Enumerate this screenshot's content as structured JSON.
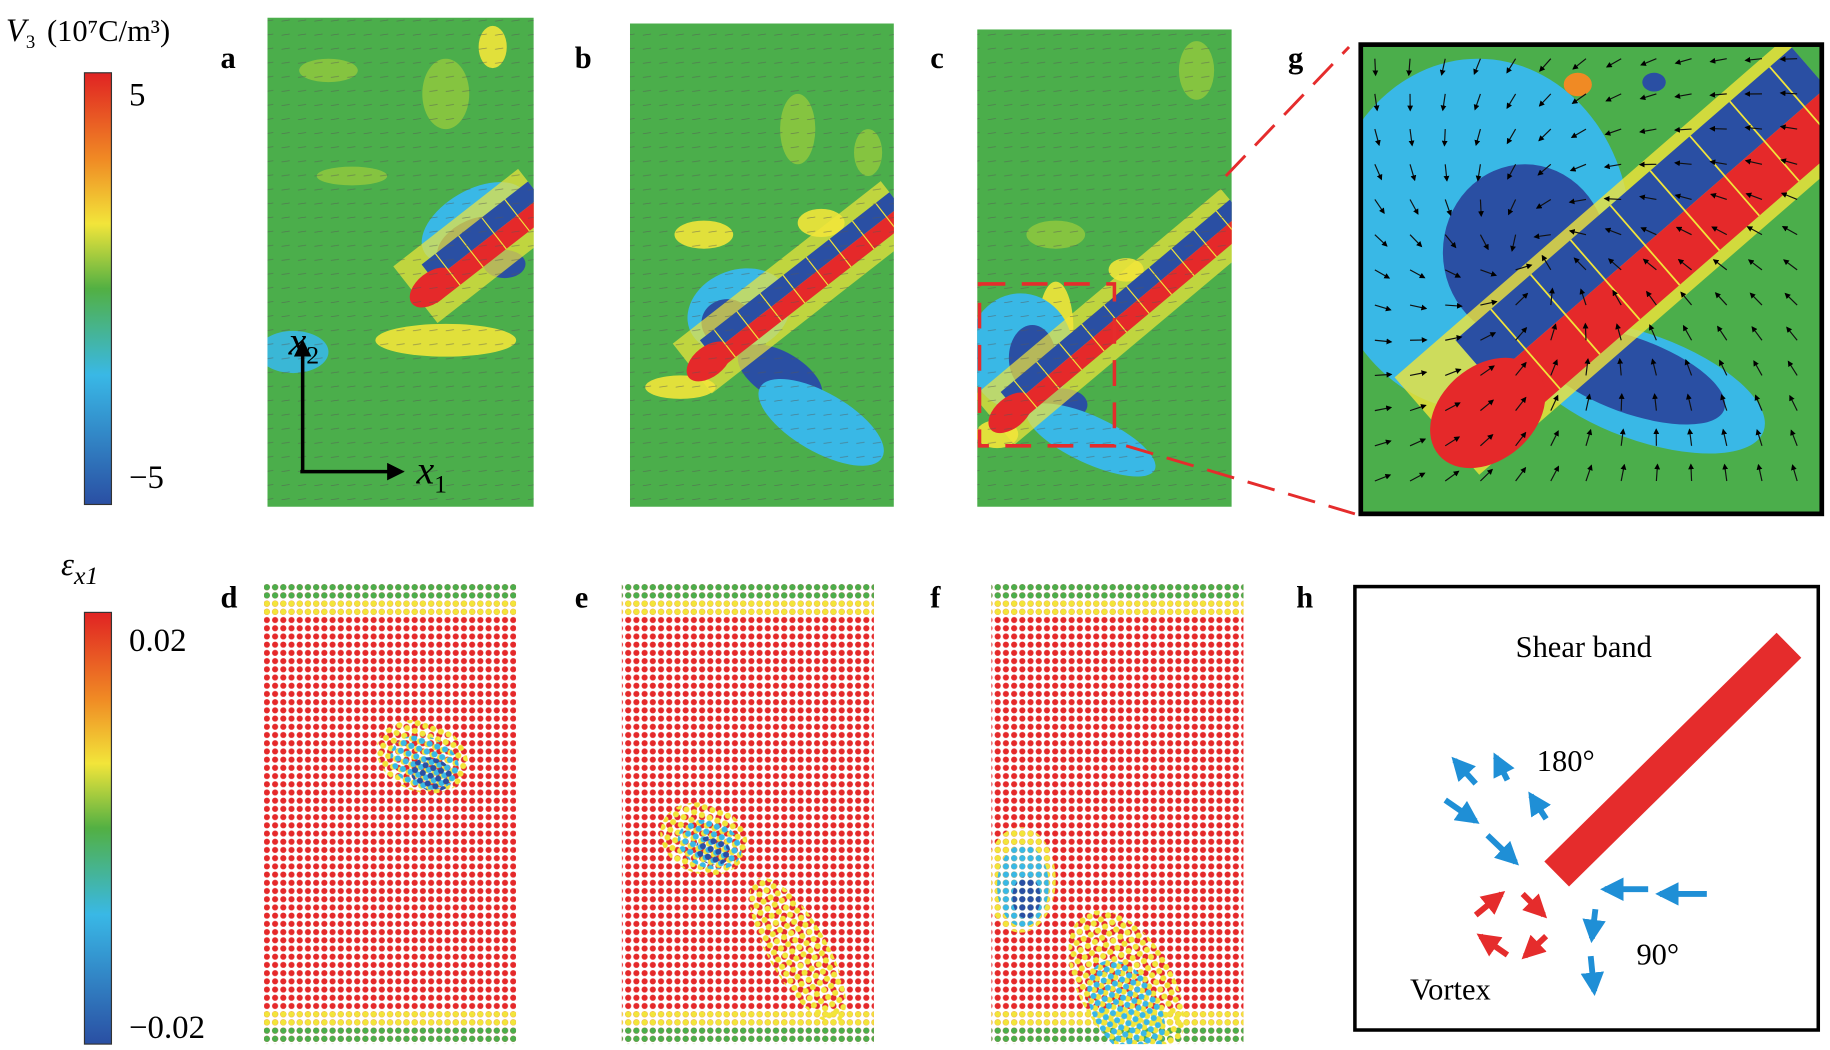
{
  "colorbars": [
    {
      "label": {
        "symbol": "V",
        "subscript": "3",
        "unit": "(10⁷C/m³)"
      },
      "max": "5",
      "min": "−5"
    },
    {
      "label": {
        "symbol": "ε",
        "subscript": "x1"
      },
      "max": "0.02",
      "min": "−0.02"
    }
  ],
  "panel_labels": [
    "a",
    "b",
    "c",
    "g",
    "d",
    "e",
    "f",
    "h"
  ],
  "axes": {
    "x1": {
      "symbol": "x",
      "subscript": "1"
    },
    "x2": {
      "symbol": "x",
      "subscript": "2"
    }
  },
  "schematic": {
    "shear_band": "Shear band",
    "angle_180": "180°",
    "angle_90": "90°",
    "vortex": "Vortex"
  }
}
